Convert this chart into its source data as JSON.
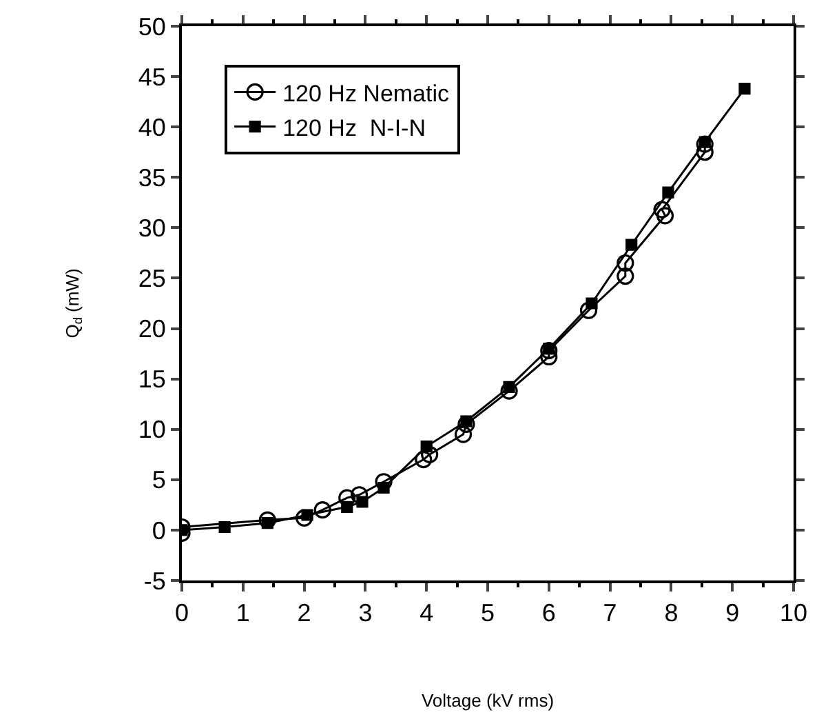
{
  "chart_data": {
    "type": "line",
    "xlabel": "Voltage (kV rms)",
    "ylabel": "Q$_{d}$ (mW)",
    "xlim": [
      0,
      10
    ],
    "xticks": [
      0,
      1,
      2,
      3,
      4,
      5,
      6,
      7,
      8,
      9,
      10
    ],
    "ylim": [
      -5,
      50
    ],
    "yticks": [
      -5,
      0,
      5,
      10,
      15,
      20,
      25,
      30,
      35,
      40,
      45,
      50
    ],
    "grid": false,
    "legend": "top left",
    "series": [
      {
        "name": "120 Hz Nematic",
        "color": "#000000",
        "marker": "circle",
        "x": [
          0,
          0,
          1.4,
          2,
          2.3,
          2.7,
          2.9,
          3.3,
          3.95,
          4.05,
          4.6,
          4.65,
          5.35,
          6,
          6,
          6.65,
          7.25,
          7.25,
          7.9,
          7.85,
          8.55,
          8.55
        ],
        "values": [
          -0.3,
          0.3,
          1,
          1.2,
          2,
          3.2,
          3.5,
          4.8,
          7,
          7.5,
          9.5,
          10.5,
          13.8,
          17.2,
          17.8,
          21.8,
          25.2,
          26.5,
          31.2,
          31.8,
          37.5,
          38.3
        ]
      },
      {
        "name": "120 Hz  N-I-N",
        "color": "#000000",
        "marker": "square",
        "x": [
          0,
          0.7,
          1.4,
          2.05,
          2.7,
          2.95,
          3.3,
          4,
          4.65,
          5.35,
          6,
          6.7,
          7.35,
          7.95,
          8.55,
          9.2
        ],
        "values": [
          0,
          0.3,
          0.7,
          1.5,
          2.3,
          2.8,
          4.2,
          8.3,
          10.8,
          14.2,
          18,
          22.5,
          28.3,
          33.5,
          38.5,
          43.8
        ]
      }
    ]
  }
}
